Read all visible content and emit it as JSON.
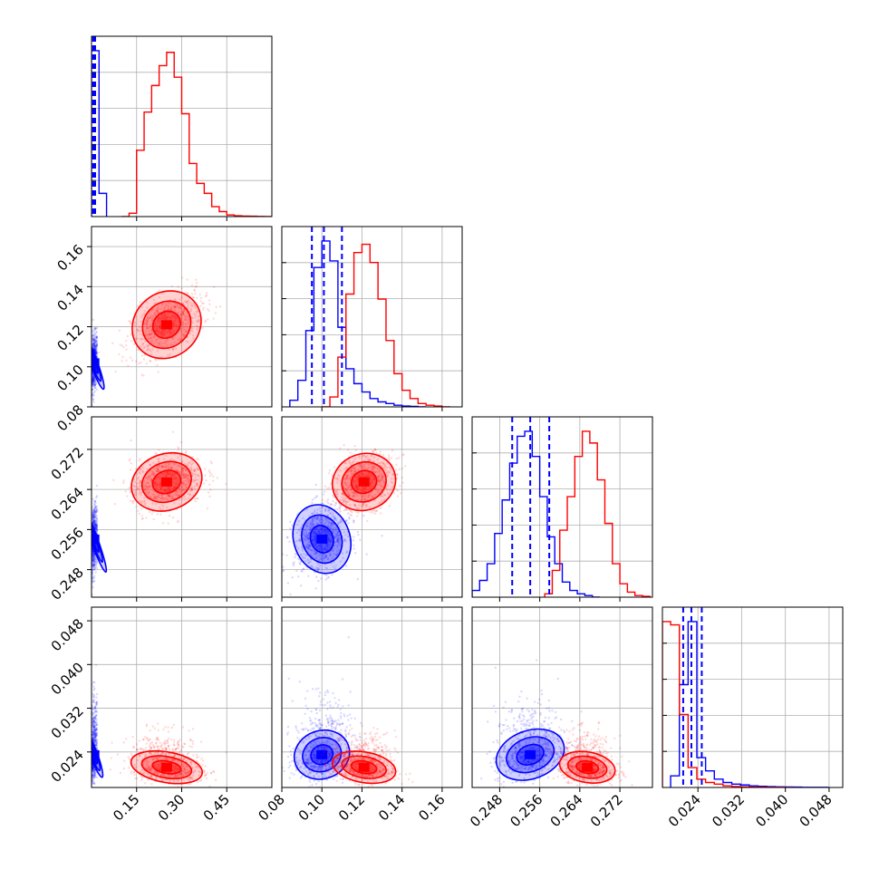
{
  "colors": {
    "blue": "#0000ff",
    "red": "#ff0000",
    "grid": "#b0b0b0"
  },
  "chart_data": {
    "type": "corner",
    "series": [
      {
        "name": "",
        "color": "#0000ff"
      },
      {
        "name": "",
        "color": "#ff0000"
      }
    ],
    "parameters": [
      {
        "index": 0,
        "range": [
          0.0,
          0.6
        ],
        "ticks": [
          0.15,
          0.3,
          0.45
        ],
        "tick_labels": [
          "0.15",
          "0.30",
          "0.45"
        ],
        "histograms": {
          "blue": {
            "edges": [
              0.0,
              0.025,
              0.05
            ],
            "counts": [
              100,
              14
            ]
          },
          "red": {
            "edges": [
              0.1,
              0.125,
              0.15,
              0.175,
              0.2,
              0.225,
              0.25,
              0.275,
              0.3,
              0.325,
              0.35,
              0.375,
              0.4,
              0.425,
              0.45,
              0.475,
              0.5,
              0.525,
              0.55,
              0.575,
              0.6
            ],
            "counts": [
              0,
              2,
              40,
              63,
              79,
              91,
              99,
              84,
              62,
              32,
              20,
              14,
              6,
              3,
              1,
              0.5,
              0.3,
              0.2,
              0.1,
              0
            ]
          },
          "blue_quantiles": [
            0.005,
            0.008,
            0.012
          ]
        }
      },
      {
        "index": 1,
        "range": [
          0.08,
          0.17
        ],
        "ticks": [
          0.08,
          0.1,
          0.12,
          0.14,
          0.16
        ],
        "tick_labels": [
          "0.08",
          "0.10",
          "0.12",
          "0.14",
          "0.16"
        ],
        "histograms": {
          "blue": {
            "edges": [
              0.084,
              0.088,
              0.092,
              0.096,
              0.1,
              0.104,
              0.108,
              0.112,
              0.116,
              0.12,
              0.124,
              0.128,
              0.132,
              0.136,
              0.14,
              0.144,
              0.148,
              0.152
            ],
            "counts": [
              4,
              16,
              46,
              84,
              100,
              88,
              48,
              23,
              14,
              9,
              5,
              3,
              2,
              1,
              0.5,
              0.3,
              0
            ]
          },
          "red": {
            "edges": [
              0.1,
              0.104,
              0.108,
              0.112,
              0.116,
              0.12,
              0.124,
              0.128,
              0.132,
              0.136,
              0.14,
              0.144,
              0.148,
              0.152,
              0.156,
              0.16,
              0.164
            ],
            "counts": [
              0,
              6,
              30,
              68,
              93,
              98,
              87,
              65,
              40,
              20,
              10,
              5,
              2,
              1,
              0.5,
              0
            ]
          },
          "blue_quantiles": [
            0.095,
            0.101,
            0.11
          ]
        }
      },
      {
        "index": 2,
        "range": [
          0.2425,
          0.2785
        ],
        "ticks": [
          0.248,
          0.256,
          0.264,
          0.272
        ],
        "tick_labels": [
          "0.248",
          "0.256",
          "0.264",
          "0.272"
        ],
        "histograms": {
          "blue": {
            "edges": [
              0.2425,
              0.244,
              0.2455,
              0.247,
              0.2485,
              0.25,
              0.2515,
              0.253,
              0.2545,
              0.256,
              0.2575,
              0.259,
              0.2605,
              0.262,
              0.2635,
              0.265,
              0.2665,
              0.268
            ],
            "counts": [
              4,
              10,
              20,
              38,
              58,
              80,
              96,
              99,
              84,
              60,
              36,
              20,
              9,
              4,
              2,
              1,
              0
            ]
          },
          "red": {
            "edges": [
              0.257,
              0.2585,
              0.26,
              0.2615,
              0.263,
              0.2645,
              0.266,
              0.2675,
              0.269,
              0.2705,
              0.272,
              0.2735,
              0.275,
              0.2765,
              0.278
            ],
            "counts": [
              2,
              16,
              40,
              60,
              84,
              99,
              92,
              70,
              44,
              20,
              8,
              3,
              1,
              0.5
            ]
          },
          "blue_quantiles": [
            0.2505,
            0.2541,
            0.2579
          ]
        }
      },
      {
        "index": 3,
        "range": [
          0.0175,
          0.0505
        ],
        "ticks": [
          0.024,
          0.032,
          0.04,
          0.048
        ],
        "tick_labels": [
          "0.024",
          "0.032",
          "0.040",
          "0.048"
        ],
        "histograms": {
          "blue": {
            "edges": [
              0.019,
              0.0206,
              0.0222,
              0.0238,
              0.0254,
              0.027,
              0.0286,
              0.0302,
              0.0318,
              0.0334,
              0.035,
              0.0366,
              0.0382,
              0.0398,
              0.0414,
              0.043,
              0.0446,
              0.0462,
              0.0478
            ],
            "counts": [
              7,
              62,
              100,
              18,
              10,
              5,
              3,
              2,
              1.5,
              1,
              0.7,
              0.5,
              0.4,
              0.3,
              0.2,
              0.1,
              0.1,
              0.1
            ]
          },
          "red": {
            "edges": [
              0.0175,
              0.019,
              0.0206,
              0.0222,
              0.0238,
              0.0254,
              0.027,
              0.0286,
              0.0302,
              0.0318,
              0.0334,
              0.035,
              0.0366,
              0.0382,
              0.0398,
              0.0414
            ],
            "counts": [
              100,
              98,
              44,
              12,
              5,
              3,
              2,
              1,
              0.6,
              0.4,
              0.3,
              0.2,
              0.1,
              0.1,
              0
            ]
          },
          "blue_quantiles": [
            0.0213,
            0.0228,
            0.0247
          ]
        }
      }
    ],
    "scatter_panels": [
      {
        "x_param": 0,
        "y_param": 1,
        "blue_center": [
          0.008,
          0.102
        ],
        "red_center": [
          0.25,
          0.121
        ]
      },
      {
        "x_param": 0,
        "y_param": 2,
        "blue_center": [
          0.008,
          0.2541
        ],
        "red_center": [
          0.25,
          0.2655
        ]
      },
      {
        "x_param": 1,
        "y_param": 2,
        "blue_center": [
          0.1,
          0.2541
        ],
        "red_center": [
          0.121,
          0.2655
        ]
      },
      {
        "x_param": 0,
        "y_param": 3,
        "blue_center": [
          0.008,
          0.0235
        ],
        "red_center": [
          0.25,
          0.0212
        ]
      },
      {
        "x_param": 1,
        "y_param": 3,
        "blue_center": [
          0.1,
          0.0235
        ],
        "red_center": [
          0.121,
          0.0212
        ]
      },
      {
        "x_param": 2,
        "y_param": 3,
        "blue_center": [
          0.2541,
          0.0235
        ],
        "red_center": [
          0.2655,
          0.0212
        ]
      }
    ],
    "grid": true,
    "legend": "none"
  }
}
